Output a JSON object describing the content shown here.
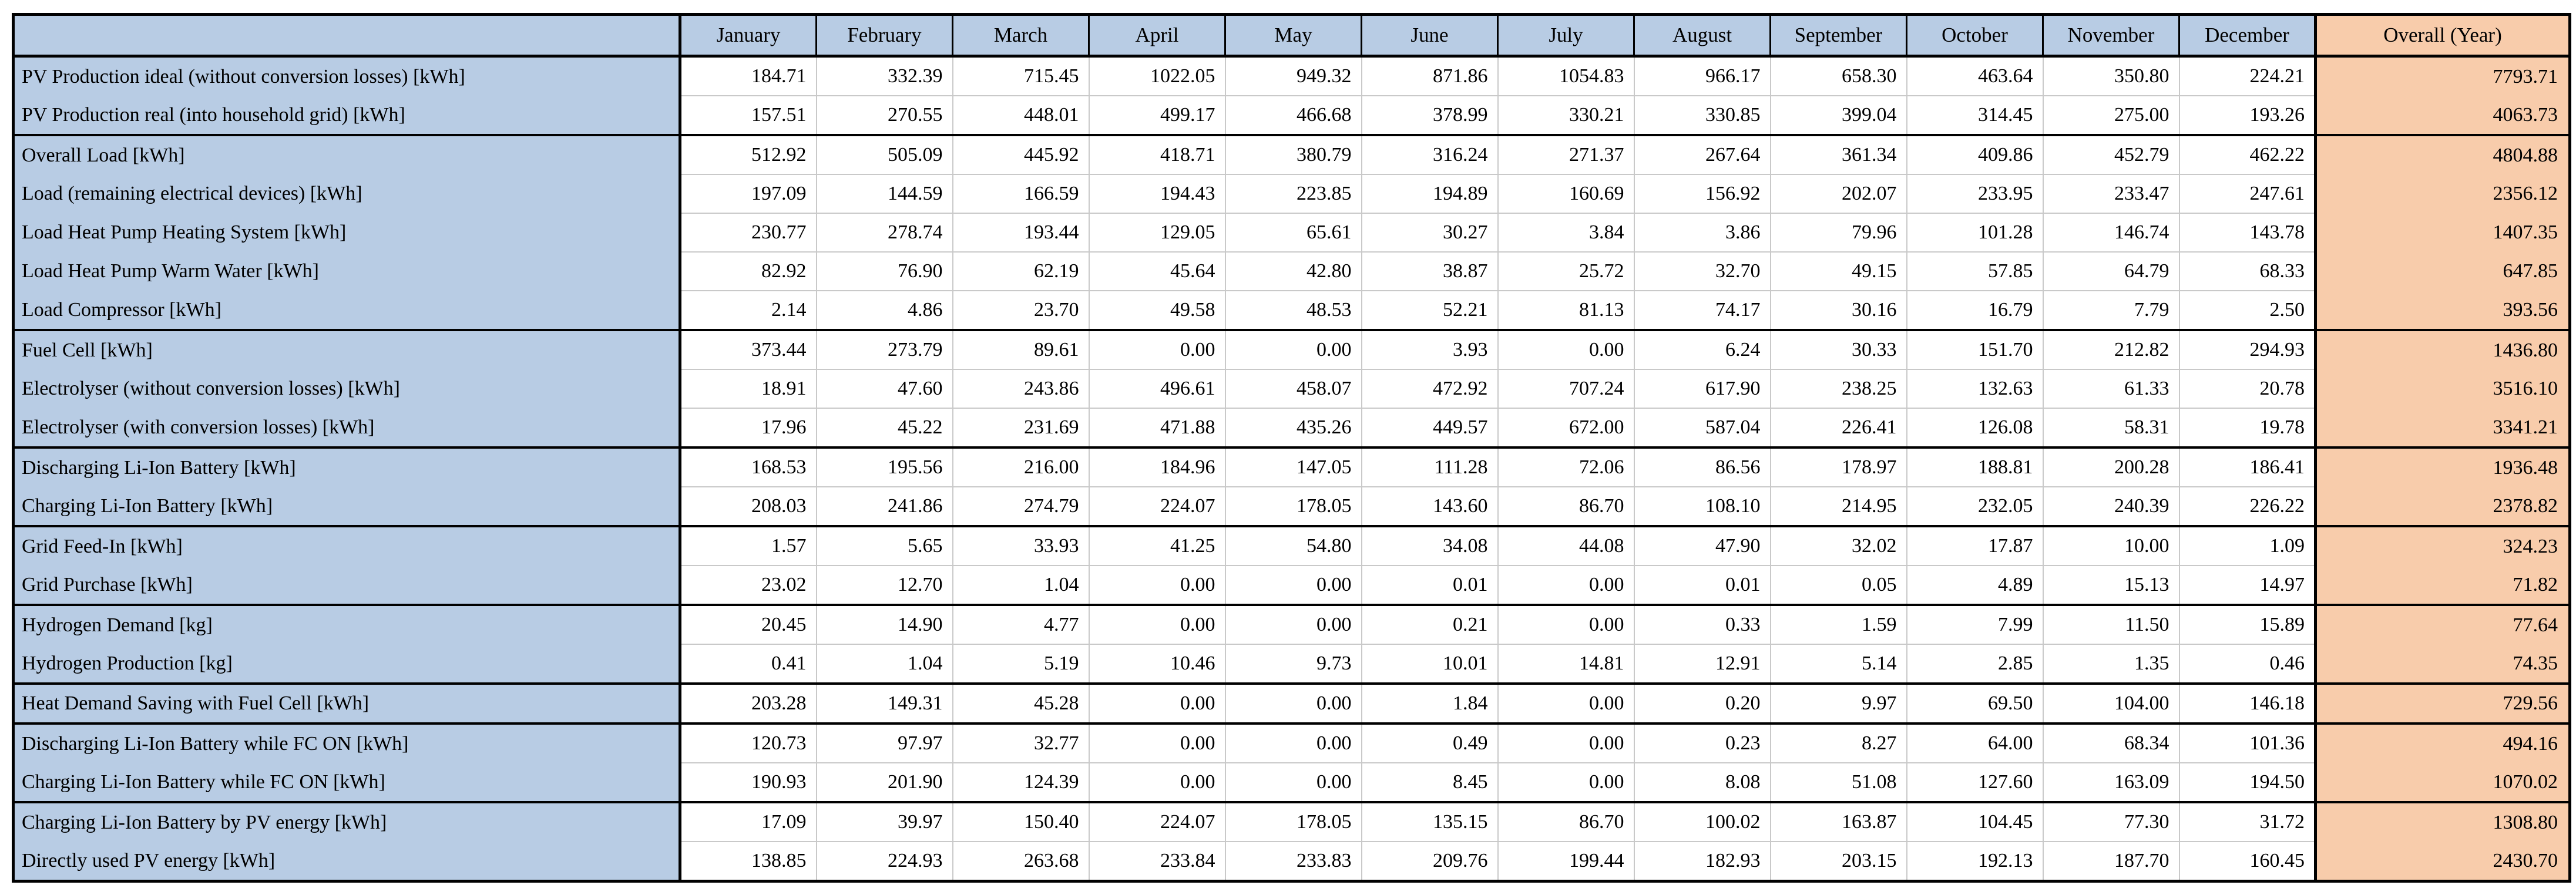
{
  "colors": {
    "header_bg": "#b8cce4",
    "label_bg": "#b8cce4",
    "overall_bg": "#f8ccab",
    "cell_bg": "#ffffff",
    "grid_line": "#c9c9c9",
    "border_color": "#000000"
  },
  "table": {
    "columns": [
      "",
      "January",
      "February",
      "March",
      "April",
      "May",
      "June",
      "July",
      "August",
      "September",
      "October",
      "November",
      "December",
      "Overall (Year)"
    ],
    "rows": [
      {
        "label": "PV Production ideal (without conversion losses) [kWh]",
        "group_start": true,
        "values": [
          "184.71",
          "332.39",
          "715.45",
          "1022.05",
          "949.32",
          "871.86",
          "1054.83",
          "966.17",
          "658.30",
          "463.64",
          "350.80",
          "224.21"
        ],
        "overall": "7793.71"
      },
      {
        "label": "PV Production real (into household grid) [kWh]",
        "group_start": false,
        "values": [
          "157.51",
          "270.55",
          "448.01",
          "499.17",
          "466.68",
          "378.99",
          "330.21",
          "330.85",
          "399.04",
          "314.45",
          "275.00",
          "193.26"
        ],
        "overall": "4063.73"
      },
      {
        "label": "Overall Load [kWh]",
        "group_start": true,
        "values": [
          "512.92",
          "505.09",
          "445.92",
          "418.71",
          "380.79",
          "316.24",
          "271.37",
          "267.64",
          "361.34",
          "409.86",
          "452.79",
          "462.22"
        ],
        "overall": "4804.88"
      },
      {
        "label": "Load (remaining electrical devices) [kWh]",
        "group_start": false,
        "values": [
          "197.09",
          "144.59",
          "166.59",
          "194.43",
          "223.85",
          "194.89",
          "160.69",
          "156.92",
          "202.07",
          "233.95",
          "233.47",
          "247.61"
        ],
        "overall": "2356.12"
      },
      {
        "label": "Load Heat Pump Heating System [kWh]",
        "group_start": false,
        "values": [
          "230.77",
          "278.74",
          "193.44",
          "129.05",
          "65.61",
          "30.27",
          "3.84",
          "3.86",
          "79.96",
          "101.28",
          "146.74",
          "143.78"
        ],
        "overall": "1407.35"
      },
      {
        "label": "Load Heat Pump Warm Water [kWh]",
        "group_start": false,
        "values": [
          "82.92",
          "76.90",
          "62.19",
          "45.64",
          "42.80",
          "38.87",
          "25.72",
          "32.70",
          "49.15",
          "57.85",
          "64.79",
          "68.33"
        ],
        "overall": "647.85"
      },
      {
        "label": "Load Compressor [kWh]",
        "group_start": false,
        "values": [
          "2.14",
          "4.86",
          "23.70",
          "49.58",
          "48.53",
          "52.21",
          "81.13",
          "74.17",
          "30.16",
          "16.79",
          "7.79",
          "2.50"
        ],
        "overall": "393.56"
      },
      {
        "label": "Fuel Cell [kWh]",
        "group_start": true,
        "values": [
          "373.44",
          "273.79",
          "89.61",
          "0.00",
          "0.00",
          "3.93",
          "0.00",
          "6.24",
          "30.33",
          "151.70",
          "212.82",
          "294.93"
        ],
        "overall": "1436.80"
      },
      {
        "label": "Electrolyser (without conversion losses) [kWh]",
        "group_start": false,
        "values": [
          "18.91",
          "47.60",
          "243.86",
          "496.61",
          "458.07",
          "472.92",
          "707.24",
          "617.90",
          "238.25",
          "132.63",
          "61.33",
          "20.78"
        ],
        "overall": "3516.10"
      },
      {
        "label": "Electrolyser (with conversion losses) [kWh]",
        "group_start": false,
        "values": [
          "17.96",
          "45.22",
          "231.69",
          "471.88",
          "435.26",
          "449.57",
          "672.00",
          "587.04",
          "226.41",
          "126.08",
          "58.31",
          "19.78"
        ],
        "overall": "3341.21"
      },
      {
        "label": "Discharging Li-Ion Battery [kWh]",
        "group_start": true,
        "values": [
          "168.53",
          "195.56",
          "216.00",
          "184.96",
          "147.05",
          "111.28",
          "72.06",
          "86.56",
          "178.97",
          "188.81",
          "200.28",
          "186.41"
        ],
        "overall": "1936.48"
      },
      {
        "label": "Charging Li-Ion Battery [kWh]",
        "group_start": false,
        "values": [
          "208.03",
          "241.86",
          "274.79",
          "224.07",
          "178.05",
          "143.60",
          "86.70",
          "108.10",
          "214.95",
          "232.05",
          "240.39",
          "226.22"
        ],
        "overall": "2378.82"
      },
      {
        "label": "Grid Feed-In [kWh]",
        "group_start": true,
        "values": [
          "1.57",
          "5.65",
          "33.93",
          "41.25",
          "54.80",
          "34.08",
          "44.08",
          "47.90",
          "32.02",
          "17.87",
          "10.00",
          "1.09"
        ],
        "overall": "324.23"
      },
      {
        "label": "Grid Purchase [kWh]",
        "group_start": false,
        "values": [
          "23.02",
          "12.70",
          "1.04",
          "0.00",
          "0.00",
          "0.01",
          "0.00",
          "0.01",
          "0.05",
          "4.89",
          "15.13",
          "14.97"
        ],
        "overall": "71.82"
      },
      {
        "label": "Hydrogen Demand [kg]",
        "group_start": true,
        "values": [
          "20.45",
          "14.90",
          "4.77",
          "0.00",
          "0.00",
          "0.21",
          "0.00",
          "0.33",
          "1.59",
          "7.99",
          "11.50",
          "15.89"
        ],
        "overall": "77.64"
      },
      {
        "label": "Hydrogen Production [kg]",
        "group_start": false,
        "values": [
          "0.41",
          "1.04",
          "5.19",
          "10.46",
          "9.73",
          "10.01",
          "14.81",
          "12.91",
          "5.14",
          "2.85",
          "1.35",
          "0.46"
        ],
        "overall": "74.35"
      },
      {
        "label": "Heat Demand Saving with Fuel Cell [kWh]",
        "group_start": true,
        "values": [
          "203.28",
          "149.31",
          "45.28",
          "0.00",
          "0.00",
          "1.84",
          "0.00",
          "0.20",
          "9.97",
          "69.50",
          "104.00",
          "146.18"
        ],
        "overall": "729.56"
      },
      {
        "label": "Discharging Li-Ion Battery while FC ON [kWh]",
        "group_start": true,
        "values": [
          "120.73",
          "97.97",
          "32.77",
          "0.00",
          "0.00",
          "0.49",
          "0.00",
          "0.23",
          "8.27",
          "64.00",
          "68.34",
          "101.36"
        ],
        "overall": "494.16"
      },
      {
        "label": "Charging Li-Ion Battery while FC ON [kWh]",
        "group_start": false,
        "values": [
          "190.93",
          "201.90",
          "124.39",
          "0.00",
          "0.00",
          "8.45",
          "0.00",
          "8.08",
          "51.08",
          "127.60",
          "163.09",
          "194.50"
        ],
        "overall": "1070.02"
      },
      {
        "label": "Charging Li-Ion Battery by PV energy [kWh]",
        "group_start": true,
        "values": [
          "17.09",
          "39.97",
          "150.40",
          "224.07",
          "178.05",
          "135.15",
          "86.70",
          "100.02",
          "163.87",
          "104.45",
          "77.30",
          "31.72"
        ],
        "overall": "1308.80"
      },
      {
        "label": "Directly used PV energy [kWh]",
        "group_start": false,
        "values": [
          "138.85",
          "224.93",
          "263.68",
          "233.84",
          "233.83",
          "209.76",
          "199.44",
          "182.93",
          "203.15",
          "192.13",
          "187.70",
          "160.45"
        ],
        "overall": "2430.70"
      }
    ]
  }
}
